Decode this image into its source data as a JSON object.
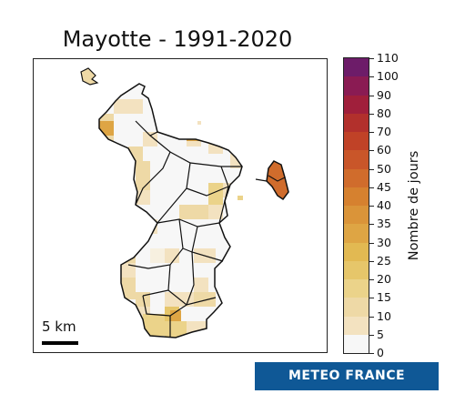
{
  "title": "Mayotte - 1991-2020",
  "scale": {
    "label": "5 km"
  },
  "colorbar": {
    "title": "Nombre de jours",
    "ticks": [
      "0",
      "5",
      "10",
      "15",
      "20",
      "25",
      "30",
      "35",
      "40",
      "45",
      "50",
      "60",
      "70",
      "80",
      "90",
      "100",
      "110"
    ],
    "colors": [
      "#f7f7f7",
      "#f3e2c0",
      "#eed9a6",
      "#ebd38a",
      "#e6c66a",
      "#e2b952",
      "#dea544",
      "#da9439",
      "#d6812f",
      "#d06c2c",
      "#c95629",
      "#c04227",
      "#b2302c",
      "#a01f3b",
      "#8a1b53",
      "#6d1c69",
      "#4b1d72"
    ]
  },
  "logo": {
    "text": "METEO FRANCE"
  },
  "colors": {
    "frame": "#222222",
    "logo_bg": "#0f5896"
  }
}
